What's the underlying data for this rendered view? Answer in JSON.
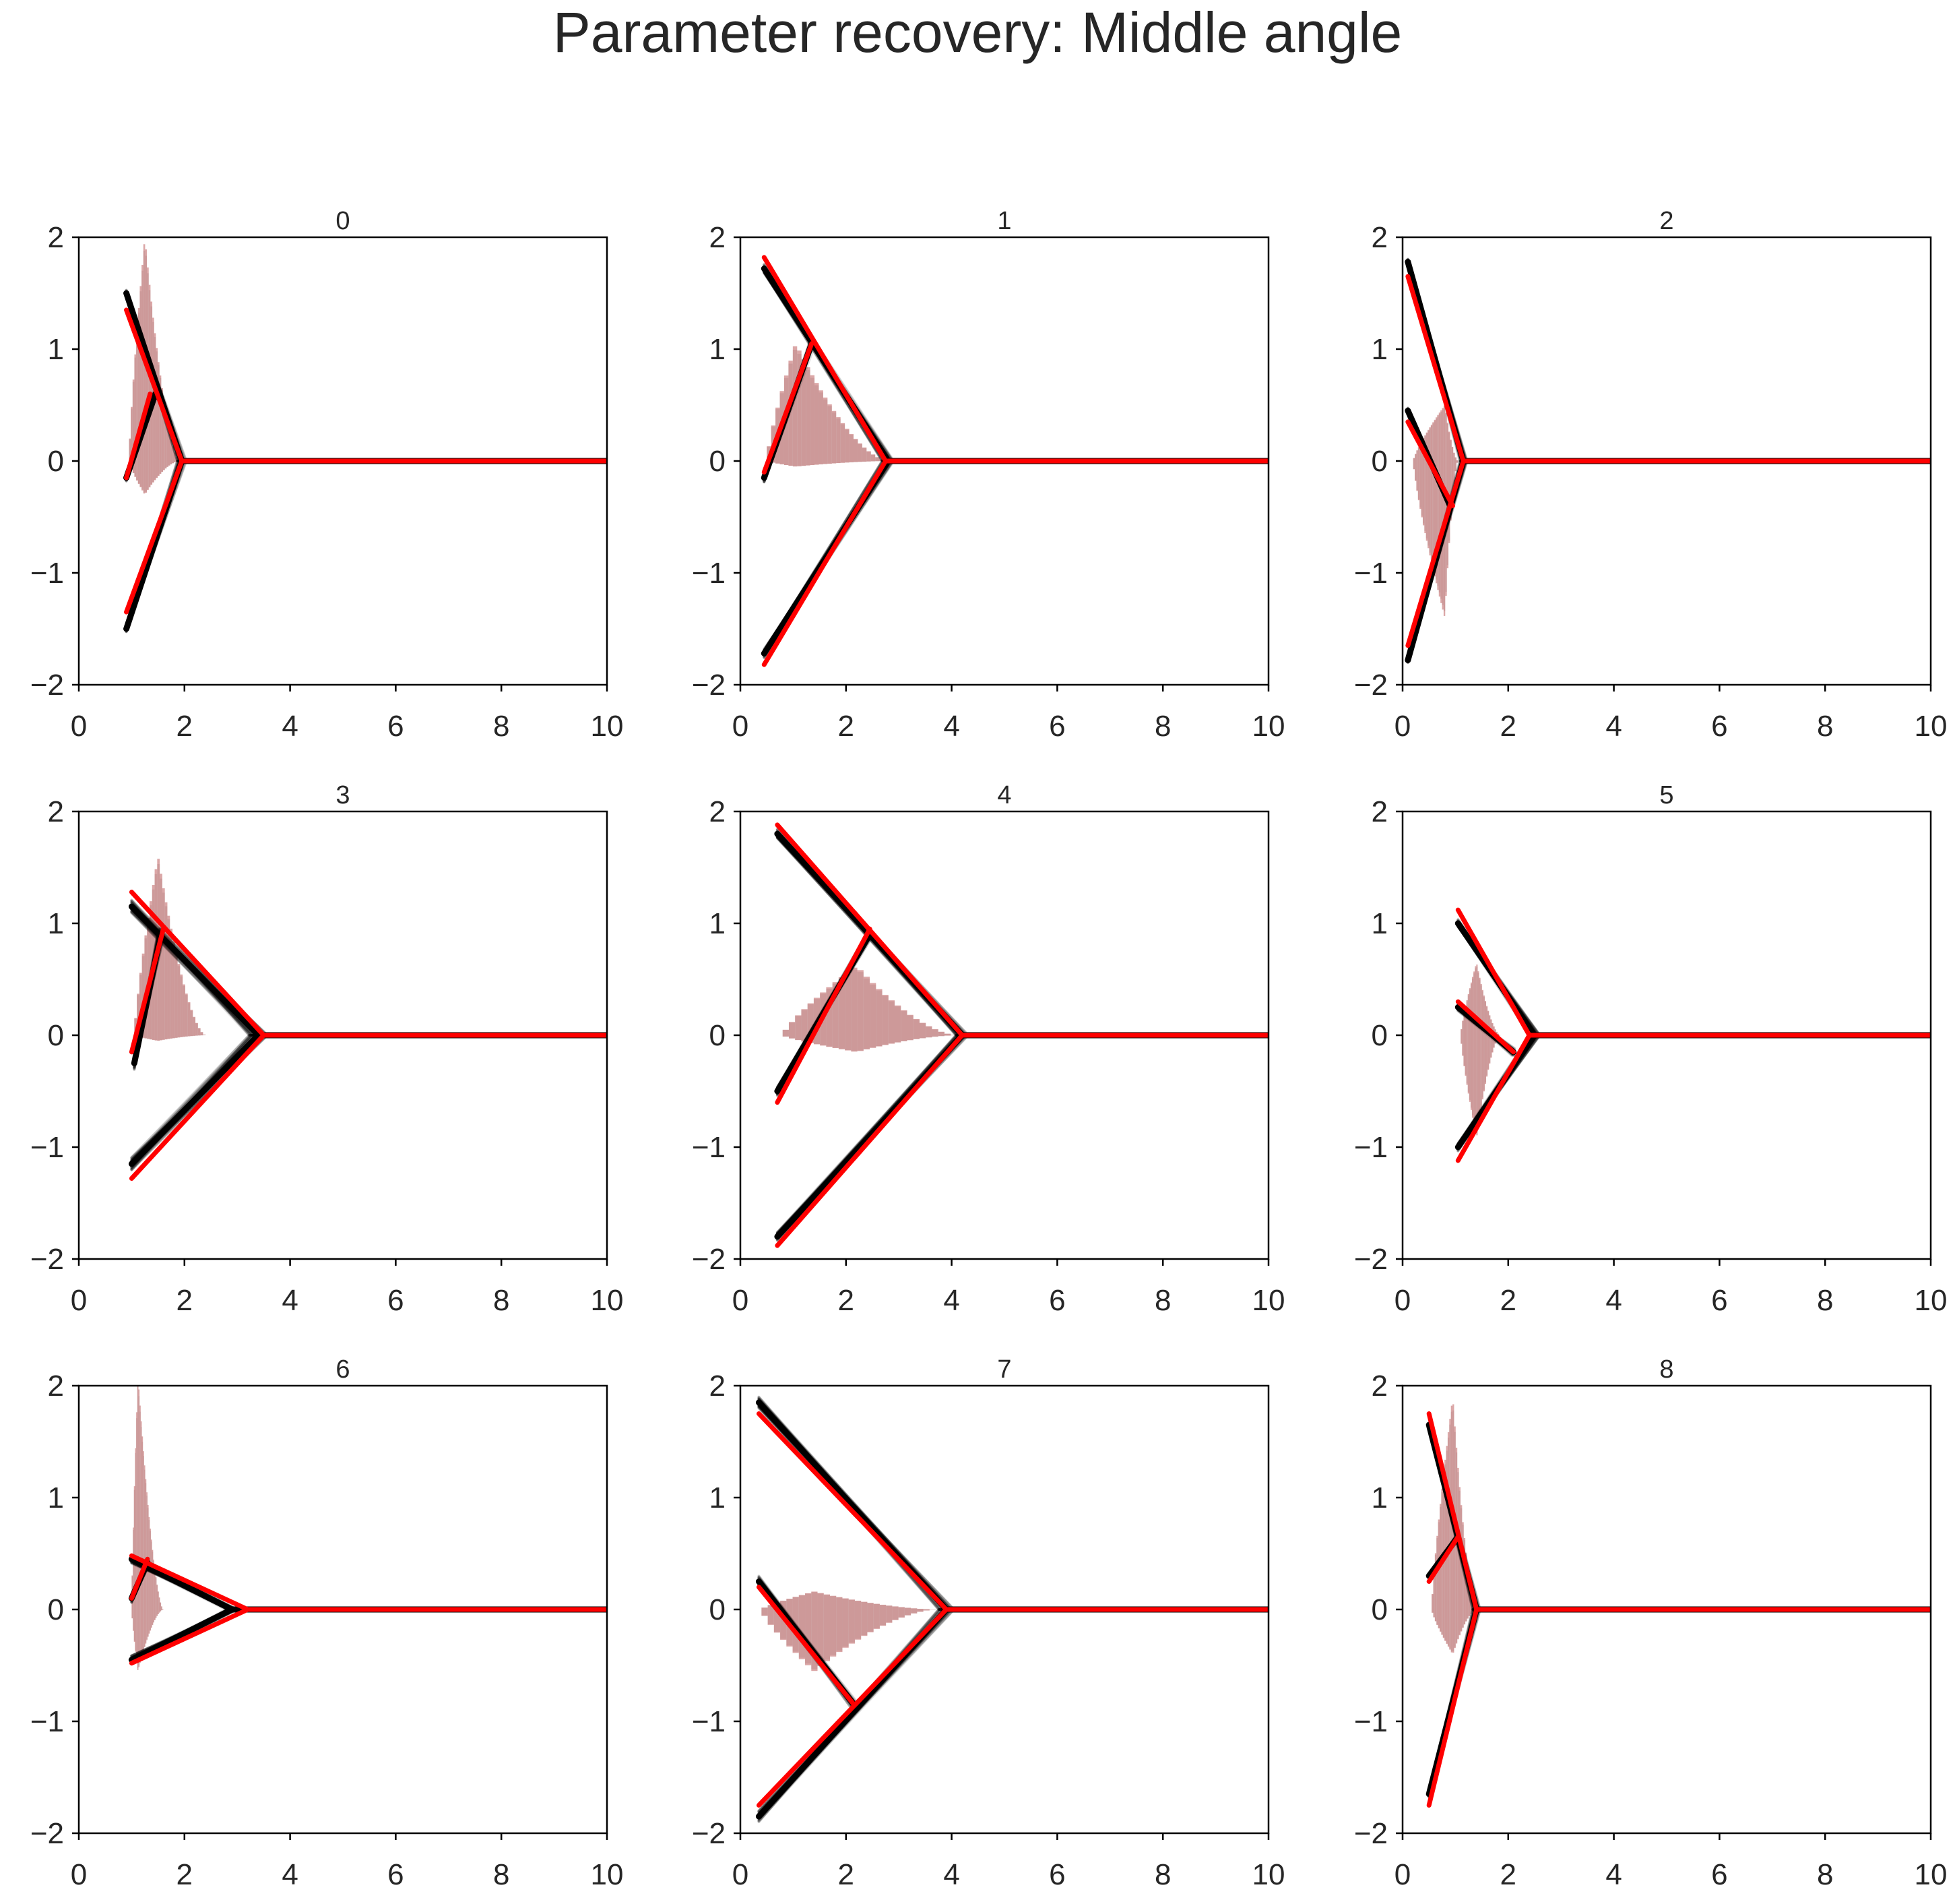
{
  "title": "Parameter recovery: Middle angle",
  "colors": {
    "true_model": "#ff0000",
    "posterior_samples": "#000000",
    "data_histogram": "#c87878",
    "simulated_histogram": "#a9a9a9",
    "axis": "#000000",
    "text": "#262626"
  },
  "chart_data": [
    {
      "type": "line",
      "title": "0",
      "xlim": [
        0,
        10
      ],
      "ylim": [
        -2,
        2
      ],
      "xticks": [
        0,
        2,
        4,
        6,
        8,
        10
      ],
      "yticks": [
        -2,
        -1,
        0,
        1,
        2
      ],
      "true_model": {
        "upper_start": [
          0.9,
          1.35
        ],
        "bend": [
          1.35,
          0.6
        ],
        "lower_start": [
          0.9,
          -1.35
        ],
        "merge_x": 1.95,
        "end_x": 10,
        "branch_start": [
          0.9,
          -0.15
        ]
      },
      "posterior": {
        "upper_start": [
          0.9,
          1.5
        ],
        "bend": [
          1.45,
          0.6
        ],
        "lower_start": [
          0.9,
          -1.5
        ],
        "merge_x": 1.95,
        "branch_start": [
          0.9,
          -0.15
        ],
        "spread": 0.06
      },
      "histogram": {
        "x_min": 0.95,
        "x_max": 1.9,
        "peak_x": 1.25,
        "peak_height": 2.0,
        "neg_height": 0.3
      }
    },
    {
      "type": "line",
      "title": "1",
      "xlim": [
        0,
        10
      ],
      "ylim": [
        -2,
        2
      ],
      "xticks": [
        0,
        2,
        4,
        6,
        8,
        10
      ],
      "yticks": [
        -2,
        -1,
        0,
        1,
        2
      ],
      "true_model": {
        "upper_start": [
          0.45,
          1.82
        ],
        "bend": [
          1.35,
          1.05
        ],
        "lower_start": [
          0.45,
          -1.82
        ],
        "merge_x": 2.75,
        "end_x": 10,
        "branch_start": [
          0.45,
          -0.1
        ]
      },
      "posterior": {
        "upper_start": [
          0.45,
          1.72
        ],
        "bend": [
          1.35,
          1.05
        ],
        "lower_start": [
          0.45,
          -1.72
        ],
        "merge_x": 2.8,
        "branch_start": [
          0.45,
          -0.15
        ],
        "spread": 0.08
      },
      "histogram": {
        "x_min": 0.5,
        "x_max": 2.8,
        "peak_x": 1.05,
        "peak_height": 1.05,
        "neg_height": 0.05
      }
    },
    {
      "type": "line",
      "title": "2",
      "xlim": [
        0,
        10
      ],
      "ylim": [
        -2,
        2
      ],
      "xticks": [
        0,
        2,
        4,
        6,
        8,
        10
      ],
      "yticks": [
        -2,
        -1,
        0,
        1,
        2
      ],
      "true_model": {
        "upper_start": [
          0.1,
          1.65
        ],
        "bend": [
          0.95,
          -0.4
        ],
        "lower_start": [
          0.1,
          -1.65
        ],
        "merge_x": 1.15,
        "end_x": 10,
        "branch_start": [
          0.1,
          0.35
        ]
      },
      "posterior": {
        "upper_start": [
          0.1,
          1.78
        ],
        "bend": [
          0.9,
          -0.4
        ],
        "lower_start": [
          0.1,
          -1.78
        ],
        "merge_x": 1.15,
        "branch_start": [
          0.1,
          0.45
        ],
        "spread": 0.05
      },
      "histogram": {
        "x_min": 0.2,
        "x_max": 1.05,
        "peak_x": 0.8,
        "peak_height": 0.5,
        "neg_height": 1.4
      }
    },
    {
      "type": "line",
      "title": "3",
      "xlim": [
        0,
        10
      ],
      "ylim": [
        -2,
        2
      ],
      "xticks": [
        0,
        2,
        4,
        6,
        8,
        10
      ],
      "yticks": [
        -2,
        -1,
        0,
        1,
        2
      ],
      "true_model": {
        "upper_start": [
          1.0,
          1.28
        ],
        "bend": [
          1.6,
          0.95
        ],
        "lower_start": [
          1.0,
          -1.28
        ],
        "merge_x": 3.5,
        "end_x": 10,
        "branch_start": [
          1.0,
          -0.15
        ]
      },
      "posterior": {
        "upper_start": [
          1.0,
          1.15
        ],
        "bend": [
          1.55,
          0.9
        ],
        "lower_start": [
          1.0,
          -1.15
        ],
        "merge_x": 3.4,
        "branch_start": [
          1.05,
          -0.25
        ],
        "spread": 0.12
      },
      "histogram": {
        "x_min": 1.05,
        "x_max": 2.4,
        "peak_x": 1.5,
        "peak_height": 1.6,
        "neg_height": 0.05
      }
    },
    {
      "type": "line",
      "title": "4",
      "xlim": [
        0,
        10
      ],
      "ylim": [
        -2,
        2
      ],
      "xticks": [
        0,
        2,
        4,
        6,
        8,
        10
      ],
      "yticks": [
        -2,
        -1,
        0,
        1,
        2
      ],
      "true_model": {
        "upper_start": [
          0.7,
          1.88
        ],
        "bend": [
          2.45,
          0.95
        ],
        "lower_start": [
          0.7,
          -1.88
        ],
        "merge_x": 4.2,
        "end_x": 10,
        "branch_start": [
          0.7,
          -0.6
        ]
      },
      "posterior": {
        "upper_start": [
          0.7,
          1.8
        ],
        "bend": [
          2.45,
          0.9
        ],
        "lower_start": [
          0.7,
          -1.8
        ],
        "merge_x": 4.2,
        "branch_start": [
          0.7,
          -0.5
        ],
        "spread": 0.08
      },
      "histogram": {
        "x_min": 0.8,
        "x_max": 4.1,
        "peak_x": 2.2,
        "peak_height": 0.62,
        "neg_height": 0.15
      }
    },
    {
      "type": "line",
      "title": "5",
      "xlim": [
        0,
        10
      ],
      "ylim": [
        -2,
        2
      ],
      "xticks": [
        0,
        2,
        4,
        6,
        8,
        10
      ],
      "yticks": [
        -2,
        -1,
        0,
        1,
        2
      ],
      "true_model": {
        "upper_start": [
          1.05,
          1.12
        ],
        "bend": [
          2.1,
          -0.15
        ],
        "lower_start": [
          1.05,
          -1.12
        ],
        "merge_x": 2.4,
        "end_x": 10,
        "branch_start": [
          1.05,
          0.3
        ]
      },
      "posterior": {
        "upper_start": [
          1.05,
          1.0
        ],
        "bend": [
          2.1,
          -0.15
        ],
        "lower_start": [
          1.05,
          -1.0
        ],
        "merge_x": 2.5,
        "branch_start": [
          1.05,
          0.25
        ],
        "spread": 0.07
      },
      "histogram": {
        "x_min": 1.1,
        "x_max": 1.85,
        "peak_x": 1.4,
        "peak_height": 0.65,
        "neg_height": 0.92
      }
    },
    {
      "type": "line",
      "title": "6",
      "xlim": [
        0,
        10
      ],
      "ylim": [
        -2,
        2
      ],
      "xticks": [
        0,
        2,
        4,
        6,
        8,
        10
      ],
      "yticks": [
        -2,
        -1,
        0,
        1,
        2
      ],
      "true_model": {
        "upper_start": [
          1.0,
          0.48
        ],
        "bend": [
          1.3,
          0.45
        ],
        "lower_start": [
          1.0,
          -0.48
        ],
        "merge_x": 3.2,
        "end_x": 10,
        "branch_start": [
          1.0,
          0.1
        ]
      },
      "posterior": {
        "upper_start": [
          1.0,
          0.45
        ],
        "bend": [
          1.3,
          0.42
        ],
        "lower_start": [
          1.0,
          -0.45
        ],
        "merge_x": 2.9,
        "branch_start": [
          1.0,
          0.1
        ],
        "spread": 0.08
      },
      "histogram": {
        "x_min": 1.0,
        "x_max": 1.6,
        "peak_x": 1.12,
        "peak_height": 2.1,
        "neg_height": 0.55
      }
    },
    {
      "type": "line",
      "title": "7",
      "xlim": [
        0,
        10
      ],
      "ylim": [
        -2,
        2
      ],
      "xticks": [
        0,
        2,
        4,
        6,
        8,
        10
      ],
      "yticks": [
        -2,
        -1,
        0,
        1,
        2
      ],
      "true_model": {
        "upper_start": [
          0.35,
          1.75
        ],
        "bend": [
          2.15,
          -0.85
        ],
        "lower_start": [
          0.35,
          -1.75
        ],
        "merge_x": 3.9,
        "end_x": 10,
        "branch_start": [
          0.35,
          0.2
        ]
      },
      "posterior": {
        "upper_start": [
          0.35,
          1.85
        ],
        "bend": [
          2.15,
          -0.85
        ],
        "lower_start": [
          0.35,
          -1.85
        ],
        "merge_x": 3.9,
        "branch_start": [
          0.35,
          0.25
        ],
        "spread": 0.1
      },
      "histogram": {
        "x_min": 0.4,
        "x_max": 3.7,
        "peak_x": 1.4,
        "peak_height": 0.16,
        "neg_height": 0.55
      }
    },
    {
      "type": "line",
      "title": "8",
      "xlim": [
        0,
        10
      ],
      "ylim": [
        -2,
        2
      ],
      "xticks": [
        0,
        2,
        4,
        6,
        8,
        10
      ],
      "yticks": [
        -2,
        -1,
        0,
        1,
        2
      ],
      "true_model": {
        "upper_start": [
          0.5,
          1.75
        ],
        "bend": [
          1.05,
          0.65
        ],
        "lower_start": [
          0.5,
          -1.75
        ],
        "merge_x": 1.4,
        "end_x": 10,
        "branch_start": [
          0.5,
          0.25
        ]
      },
      "posterior": {
        "upper_start": [
          0.5,
          1.65
        ],
        "bend": [
          1.05,
          0.65
        ],
        "lower_start": [
          0.5,
          -1.65
        ],
        "merge_x": 1.4,
        "branch_start": [
          0.5,
          0.3
        ],
        "spread": 0.05
      },
      "histogram": {
        "x_min": 0.55,
        "x_max": 1.4,
        "peak_x": 0.95,
        "peak_height": 1.9,
        "neg_height": 0.4
      }
    }
  ]
}
